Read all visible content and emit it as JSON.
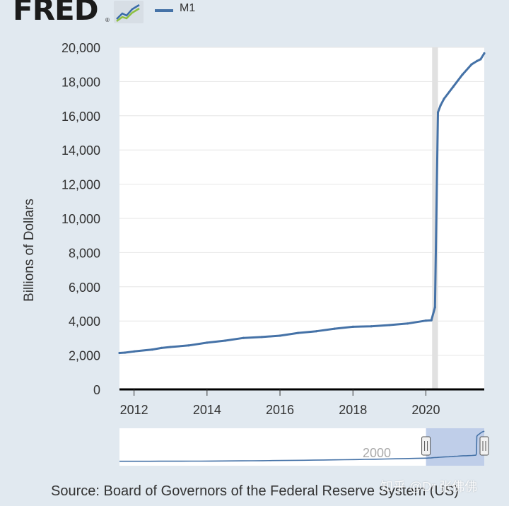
{
  "header": {
    "logo_text": "FRED",
    "logo_reg": "®",
    "logo_icon": "fred-graph-icon",
    "legend": {
      "series_name": "M1",
      "color": "#4572a7"
    }
  },
  "chart_data": {
    "type": "line",
    "xlabel": "",
    "ylabel": "Billions of Dollars",
    "x_ticks": [
      "2012",
      "2014",
      "2016",
      "2018",
      "2020"
    ],
    "y_ticks": [
      "0",
      "2,000",
      "4,000",
      "6,000",
      "8,000",
      "10,000",
      "12,000",
      "14,000",
      "16,000",
      "18,000",
      "20,000"
    ],
    "ylim": [
      0,
      20000
    ],
    "xlim": [
      2011.6,
      2021.6
    ],
    "grid": "horizontal",
    "recession_shading": {
      "start": 2020.17,
      "end": 2020.33,
      "color": "#e1e1e1"
    },
    "series": [
      {
        "name": "M1",
        "color": "#4572a7",
        "x": [
          2011.6,
          2011.75,
          2012.0,
          2012.5,
          2012.75,
          2013.0,
          2013.5,
          2014.0,
          2014.5,
          2015.0,
          2015.5,
          2016.0,
          2016.5,
          2017.0,
          2017.5,
          2018.0,
          2018.5,
          2019.0,
          2019.5,
          2020.0,
          2020.15,
          2020.25,
          2020.33,
          2020.4,
          2020.5,
          2020.75,
          2021.0,
          2021.25,
          2021.4,
          2021.5,
          2021.6
        ],
        "values": [
          2130,
          2150,
          2220,
          2330,
          2420,
          2480,
          2570,
          2730,
          2850,
          3010,
          3060,
          3140,
          3300,
          3400,
          3550,
          3660,
          3690,
          3760,
          3850,
          4020,
          4040,
          4800,
          16200,
          16600,
          17000,
          17700,
          18400,
          19000,
          19200,
          19300,
          19650
        ]
      }
    ]
  },
  "navigator": {
    "label": "2000",
    "selection_start": 2011.6,
    "selection_end": 2021.6,
    "x_start": 1959,
    "x_end": 2021.6,
    "selection_color": "#b4c6e5"
  },
  "footer": {
    "source": "Source: Board of Governors of the Federal Reserve System (US)",
    "watermark": "知乎 @Dr 张佛佛"
  }
}
